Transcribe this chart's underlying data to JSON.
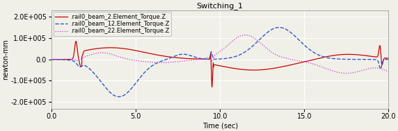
{
  "title": "Switching_1",
  "xlabel": "Time (sec)",
  "ylabel": "newton-mm",
  "xlim": [
    0.0,
    20.0
  ],
  "ylim": [
    -230000.0,
    230000.0
  ],
  "yticks": [
    -200000.0,
    -100000.0,
    0.0,
    100000.0,
    200000.0
  ],
  "xticks": [
    0.0,
    5.0,
    10.0,
    15.0,
    20.0
  ],
  "legend": [
    ".rail0_beam_2.Element_Torque.Z",
    ".rail0_beam_12.Element_Torque.Z",
    ".rail0_beam_22.Element_Torque.Z"
  ],
  "colors": [
    "#cc0000",
    "#3355cc",
    "#cc33cc"
  ],
  "linestyles": [
    "-",
    "--",
    "-."
  ],
  "linewidths": [
    0.9,
    1.0,
    0.9
  ],
  "bg_color": "#f0f0e8",
  "grid_color": "#ffffff",
  "title_fontsize": 8,
  "label_fontsize": 7,
  "tick_fontsize": 7,
  "legend_fontsize": 6
}
